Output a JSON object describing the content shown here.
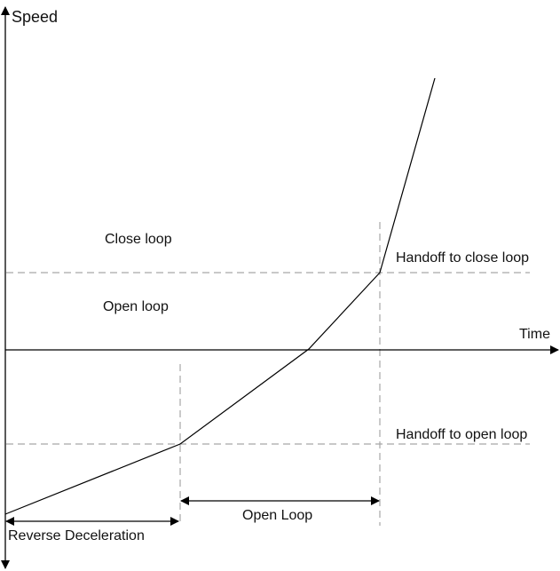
{
  "axes": {
    "y_label": "Speed",
    "x_label": "Time"
  },
  "regions": {
    "upper": "Close loop",
    "lower": "Open loop"
  },
  "thresholds": {
    "close": "Handoff to close loop",
    "open": "Handoff to open loop"
  },
  "spans": {
    "reverse": "Reverse Deceleration",
    "open": "Open Loop"
  },
  "colors": {
    "line": "#000000",
    "dashed": "#a6a6a6"
  }
}
